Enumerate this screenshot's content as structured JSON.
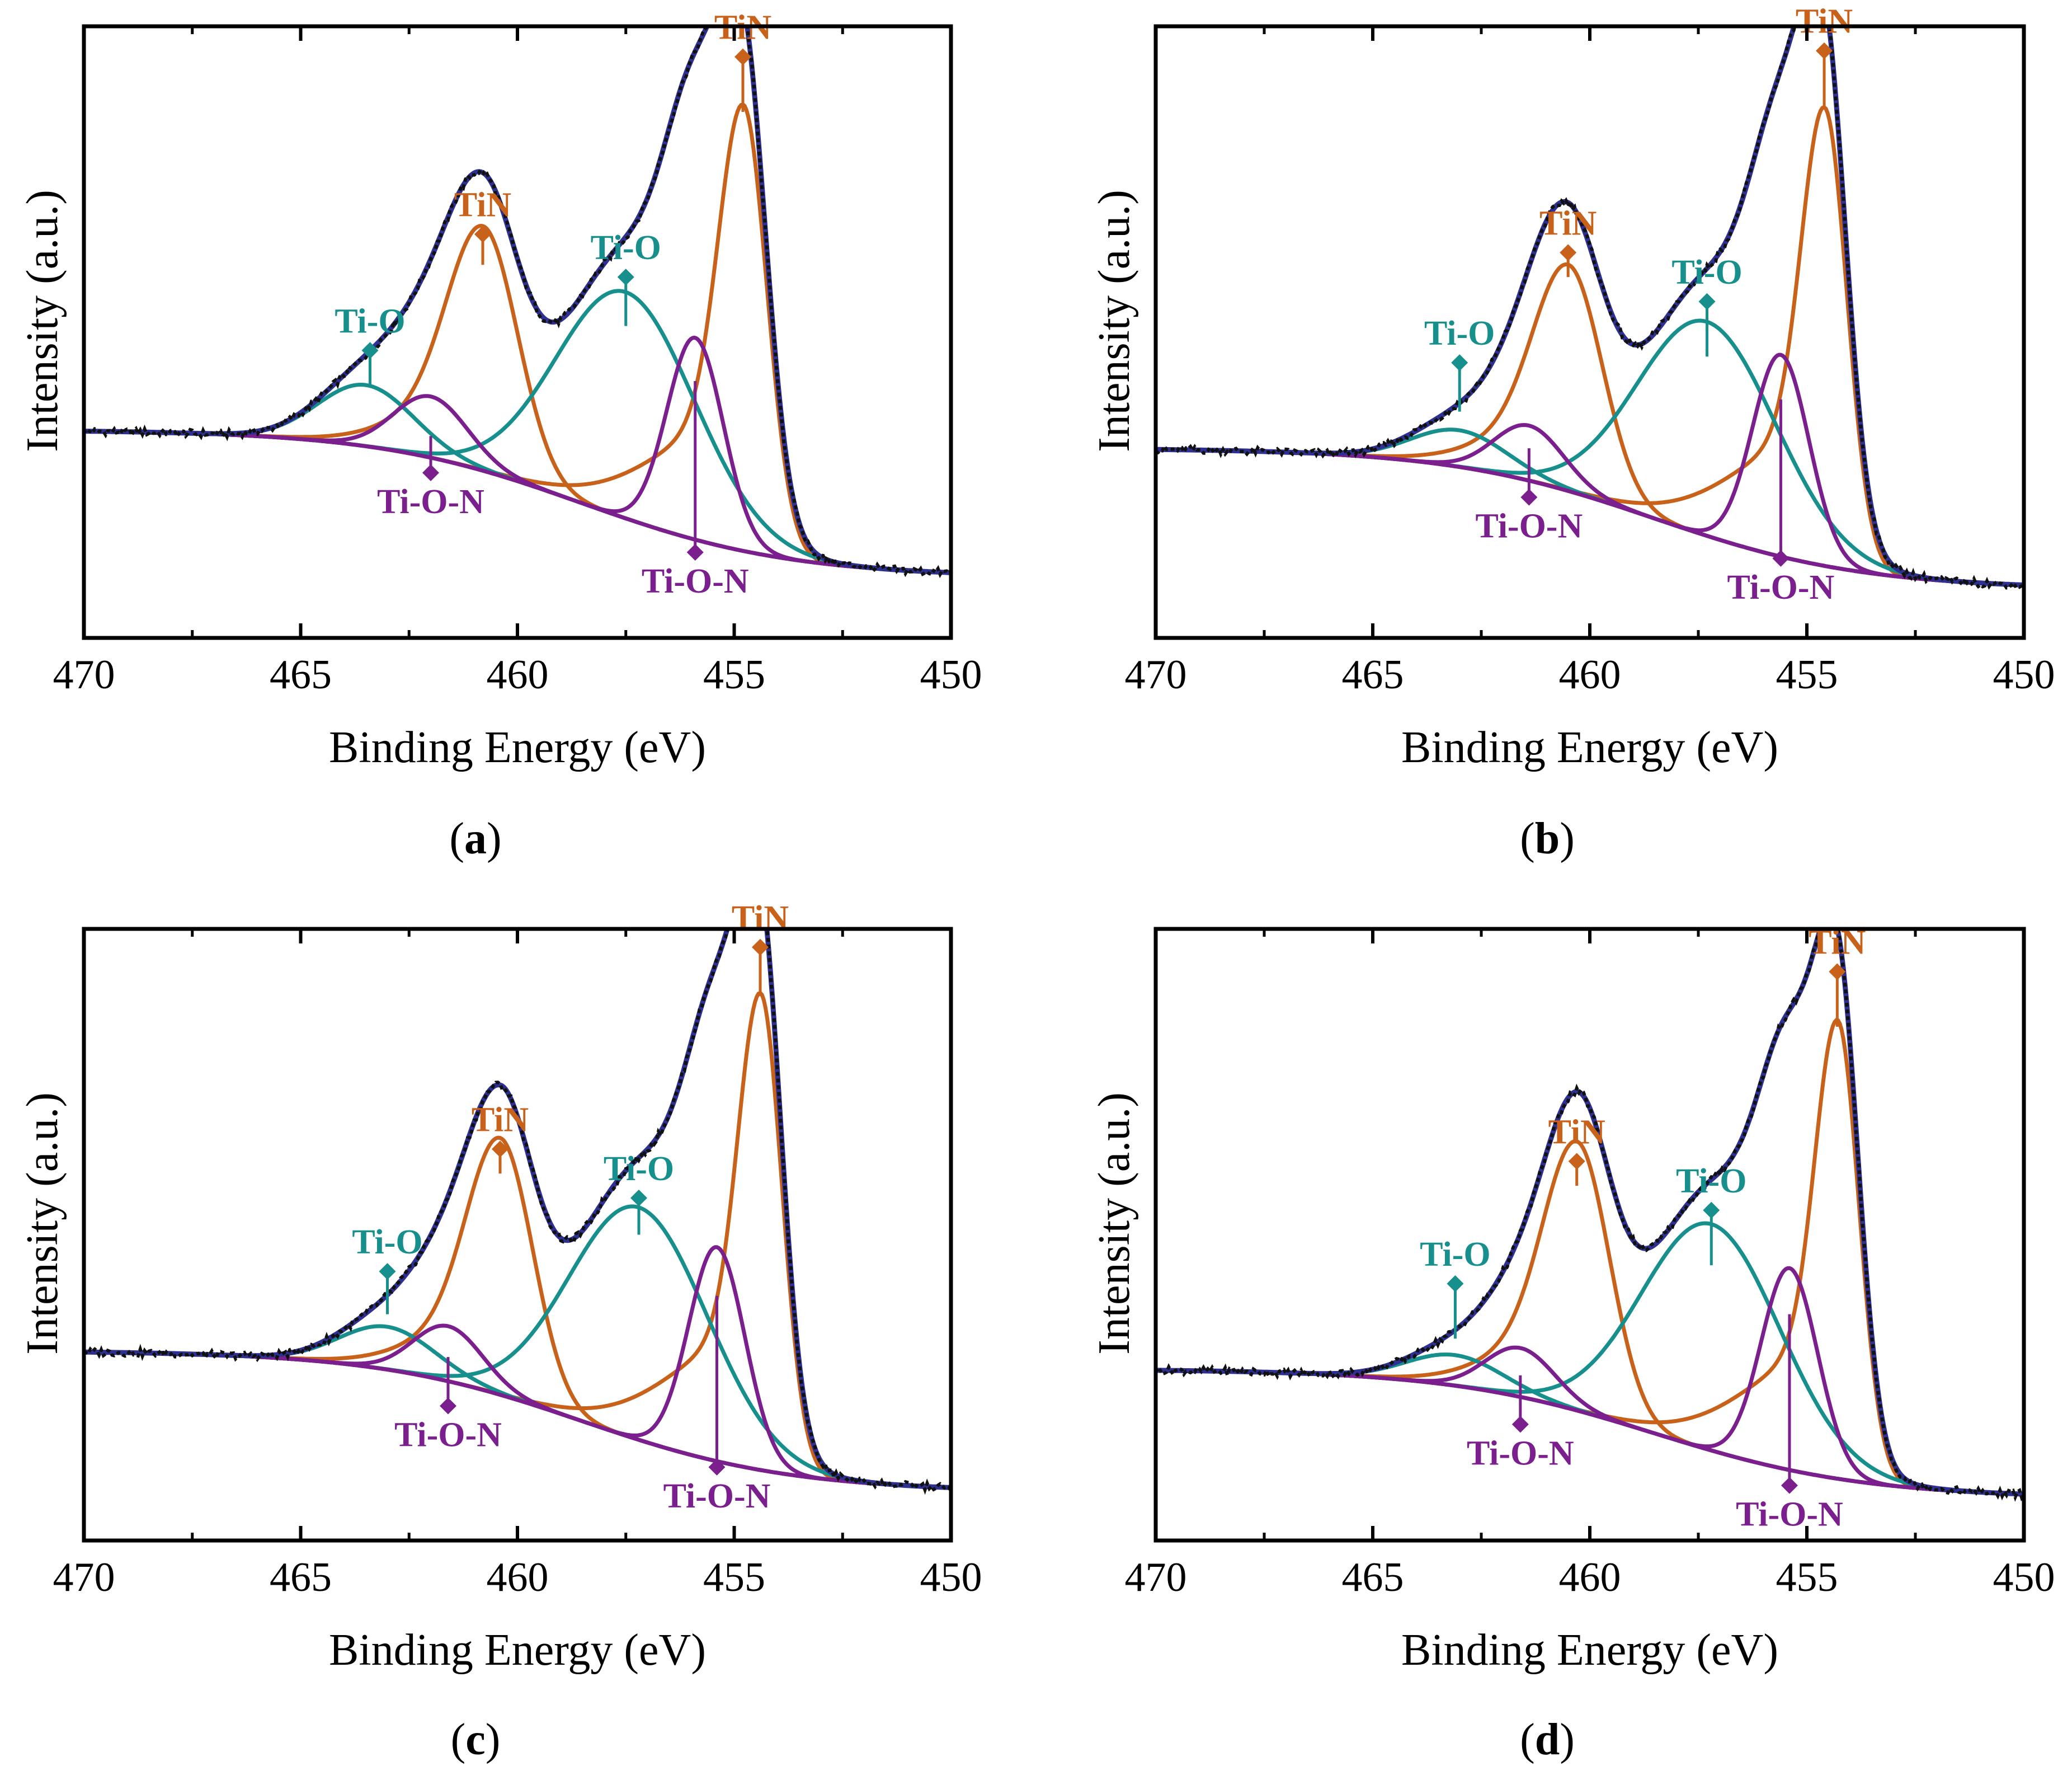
{
  "colors": {
    "tin": "#c8621a",
    "tio": "#178f8c",
    "tion": "#7b1e8e",
    "envelope": "#2e3192",
    "data": "#111111",
    "background_curve": "#7b1e8e"
  },
  "chart_data": [
    {
      "type": "line",
      "panel": "a",
      "caption_open": "(",
      "caption_letter": "a",
      "caption_close": ")",
      "xlabel": "Binding Energy (eV)",
      "ylabel": "Intensity (a.u.)",
      "xlim": [
        470,
        450
      ],
      "ylim": [
        0,
        1.0
      ],
      "xticks": [
        "470",
        "465",
        "460",
        "455",
        "450"
      ],
      "baseline": {
        "high": 0.34,
        "low": 0.1,
        "center": 458.5,
        "width": 2.4
      },
      "components": [
        {
          "name": "TiN",
          "center": 454.8,
          "amp": 0.73,
          "sigma": 0.55,
          "tail": 1.9,
          "color_key": "tin"
        },
        {
          "name": "TiN",
          "center": 460.8,
          "amp": 0.4,
          "sigma": 0.8,
          "tail": 1.6,
          "color_key": "tin"
        },
        {
          "name": "Ti-O",
          "center": 457.5,
          "amp": 0.37,
          "sigma": 1.6,
          "tail": 0,
          "color_key": "tio"
        },
        {
          "name": "Ti-O",
          "center": 463.5,
          "amp": 0.1,
          "sigma": 1.1,
          "tail": 0,
          "color_key": "tio"
        },
        {
          "name": "Ti-O-N",
          "center": 455.9,
          "amp": 0.33,
          "sigma": 0.65,
          "tail": 0,
          "color_key": "tion"
        },
        {
          "name": "Ti-O-N",
          "center": 462.0,
          "amp": 0.1,
          "sigma": 0.85,
          "tail": 0,
          "color_key": "tion"
        }
      ],
      "annotations": [
        {
          "text": "TiN",
          "x": 454.8,
          "y": 0.95,
          "stem_to": 0.86,
          "position": "above",
          "color_key": "tin"
        },
        {
          "text": "TiN",
          "x": 460.8,
          "y": 0.66,
          "stem_to": 0.61,
          "position": "above",
          "color_key": "tin"
        },
        {
          "text": "Ti-O",
          "x": 457.5,
          "y": 0.59,
          "stem_to": 0.51,
          "position": "above",
          "color_key": "tio"
        },
        {
          "text": "Ti-O",
          "x": 463.4,
          "y": 0.47,
          "stem_to": 0.41,
          "position": "above",
          "color_key": "tio"
        },
        {
          "text": "Ti-O-N",
          "x": 462.0,
          "y": 0.27,
          "stem_to": 0.33,
          "position": "below",
          "color_key": "tion"
        },
        {
          "text": "Ti-O-N",
          "x": 455.9,
          "y": 0.14,
          "stem_to": 0.42,
          "position": "below",
          "color_key": "tion"
        }
      ]
    },
    {
      "type": "line",
      "panel": "b",
      "caption_open": "(",
      "caption_letter": "b",
      "caption_close": ")",
      "xlabel": "Binding Energy (eV)",
      "ylabel": "Intensity (a.u.)",
      "xlim": [
        470,
        450
      ],
      "ylim": [
        0,
        1.0
      ],
      "xticks": [
        "470",
        "465",
        "460",
        "455",
        "450"
      ],
      "baseline": {
        "high": 0.31,
        "low": 0.08,
        "center": 458.5,
        "width": 2.4
      },
      "components": [
        {
          "name": "TiN",
          "center": 454.6,
          "amp": 0.75,
          "sigma": 0.52,
          "tail": 1.9,
          "color_key": "tin"
        },
        {
          "name": "TiN",
          "center": 460.5,
          "amp": 0.37,
          "sigma": 0.78,
          "tail": 1.6,
          "color_key": "tin"
        },
        {
          "name": "Ti-O",
          "center": 457.3,
          "amp": 0.35,
          "sigma": 1.6,
          "tail": 0,
          "color_key": "tio"
        },
        {
          "name": "Ti-O",
          "center": 463.0,
          "amp": 0.06,
          "sigma": 1.1,
          "tail": 0,
          "color_key": "tio"
        },
        {
          "name": "Ti-O-N",
          "center": 455.6,
          "amp": 0.33,
          "sigma": 0.65,
          "tail": 0,
          "color_key": "tion"
        },
        {
          "name": "Ti-O-N",
          "center": 461.4,
          "amp": 0.09,
          "sigma": 0.8,
          "tail": 0,
          "color_key": "tion"
        }
      ],
      "annotations": [
        {
          "text": "TiN",
          "x": 454.6,
          "y": 0.96,
          "stem_to": 0.87,
          "position": "above",
          "color_key": "tin"
        },
        {
          "text": "TiN",
          "x": 460.5,
          "y": 0.63,
          "stem_to": 0.59,
          "position": "above",
          "color_key": "tin"
        },
        {
          "text": "Ti-O",
          "x": 457.3,
          "y": 0.55,
          "stem_to": 0.46,
          "position": "above",
          "color_key": "tio"
        },
        {
          "text": "Ti-O",
          "x": 463.0,
          "y": 0.45,
          "stem_to": 0.37,
          "position": "above",
          "color_key": "tio"
        },
        {
          "text": "Ti-O-N",
          "x": 461.4,
          "y": 0.23,
          "stem_to": 0.31,
          "position": "below",
          "color_key": "tion"
        },
        {
          "text": "Ti-O-N",
          "x": 455.6,
          "y": 0.13,
          "stem_to": 0.39,
          "position": "below",
          "color_key": "tion"
        }
      ]
    },
    {
      "type": "line",
      "panel": "c",
      "caption_open": "(",
      "caption_letter": "c",
      "caption_close": ")",
      "xlabel": "Binding Energy (eV)",
      "ylabel": "Intensity (a.u.)",
      "xlim": [
        470,
        450
      ],
      "ylim": [
        0,
        1.0
      ],
      "xticks": [
        "470",
        "465",
        "460",
        "455",
        "450"
      ],
      "baseline": {
        "high": 0.31,
        "low": 0.08,
        "center": 458.5,
        "width": 2.4
      },
      "components": [
        {
          "name": "TiN",
          "center": 454.4,
          "amp": 0.78,
          "sigma": 0.5,
          "tail": 1.9,
          "color_key": "tin"
        },
        {
          "name": "TiN",
          "center": 460.4,
          "amp": 0.42,
          "sigma": 0.75,
          "tail": 1.6,
          "color_key": "tin"
        },
        {
          "name": "Ti-O",
          "center": 457.2,
          "amp": 0.38,
          "sigma": 1.6,
          "tail": 0,
          "color_key": "tio"
        },
        {
          "name": "Ti-O",
          "center": 463.0,
          "amp": 0.07,
          "sigma": 1.1,
          "tail": 0,
          "color_key": "tio"
        },
        {
          "name": "Ti-O-N",
          "center": 455.4,
          "amp": 0.35,
          "sigma": 0.65,
          "tail": 0,
          "color_key": "tion"
        },
        {
          "name": "Ti-O-N",
          "center": 461.6,
          "amp": 0.09,
          "sigma": 0.8,
          "tail": 0,
          "color_key": "tion"
        }
      ],
      "annotations": [
        {
          "text": "TiN",
          "x": 454.4,
          "y": 0.97,
          "stem_to": 0.89,
          "position": "above",
          "color_key": "tin"
        },
        {
          "text": "TiN",
          "x": 460.4,
          "y": 0.64,
          "stem_to": 0.6,
          "position": "above",
          "color_key": "tin"
        },
        {
          "text": "Ti-O",
          "x": 457.2,
          "y": 0.56,
          "stem_to": 0.5,
          "position": "above",
          "color_key": "tio"
        },
        {
          "text": "Ti-O",
          "x": 463.0,
          "y": 0.44,
          "stem_to": 0.37,
          "position": "above",
          "color_key": "tio"
        },
        {
          "text": "Ti-O-N",
          "x": 461.6,
          "y": 0.22,
          "stem_to": 0.3,
          "position": "below",
          "color_key": "tion"
        },
        {
          "text": "Ti-O-N",
          "x": 455.4,
          "y": 0.12,
          "stem_to": 0.4,
          "position": "below",
          "color_key": "tion"
        }
      ]
    },
    {
      "type": "line",
      "panel": "d",
      "caption_open": "(",
      "caption_letter": "d",
      "caption_close": ")",
      "xlabel": "Binding Energy (eV)",
      "ylabel": "Intensity (a.u.)",
      "xlim": [
        470,
        450
      ],
      "ylim": [
        0,
        1.0
      ],
      "xticks": [
        "470",
        "465",
        "460",
        "455",
        "450"
      ],
      "baseline": {
        "high": 0.28,
        "low": 0.07,
        "center": 458.5,
        "width": 2.4
      },
      "components": [
        {
          "name": "TiN",
          "center": 454.3,
          "amp": 0.75,
          "sigma": 0.5,
          "tail": 1.9,
          "color_key": "tin"
        },
        {
          "name": "TiN",
          "center": 460.3,
          "amp": 0.44,
          "sigma": 0.75,
          "tail": 1.6,
          "color_key": "tin"
        },
        {
          "name": "Ti-O",
          "center": 457.2,
          "amp": 0.37,
          "sigma": 1.6,
          "tail": 0,
          "color_key": "tio"
        },
        {
          "name": "Ti-O",
          "center": 463.1,
          "amp": 0.05,
          "sigma": 1.1,
          "tail": 0,
          "color_key": "tio"
        },
        {
          "name": "Ti-O-N",
          "center": 455.4,
          "amp": 0.33,
          "sigma": 0.65,
          "tail": 0,
          "color_key": "tion"
        },
        {
          "name": "Ti-O-N",
          "center": 461.6,
          "amp": 0.08,
          "sigma": 0.8,
          "tail": 0,
          "color_key": "tion"
        }
      ],
      "annotations": [
        {
          "text": "TiN",
          "x": 454.3,
          "y": 0.93,
          "stem_to": 0.84,
          "position": "above",
          "color_key": "tin"
        },
        {
          "text": "TiN",
          "x": 460.3,
          "y": 0.62,
          "stem_to": 0.58,
          "position": "above",
          "color_key": "tin"
        },
        {
          "text": "Ti-O",
          "x": 457.2,
          "y": 0.54,
          "stem_to": 0.45,
          "position": "above",
          "color_key": "tio"
        },
        {
          "text": "Ti-O",
          "x": 463.1,
          "y": 0.42,
          "stem_to": 0.33,
          "position": "above",
          "color_key": "tio"
        },
        {
          "text": "Ti-O-N",
          "x": 461.6,
          "y": 0.19,
          "stem_to": 0.27,
          "position": "below",
          "color_key": "tion"
        },
        {
          "text": "Ti-O-N",
          "x": 455.4,
          "y": 0.09,
          "stem_to": 0.37,
          "position": "below",
          "color_key": "tion"
        }
      ]
    }
  ]
}
